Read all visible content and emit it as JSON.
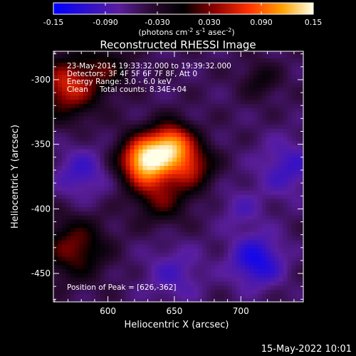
{
  "chart_data": {
    "type": "heatmap",
    "title": "Reconstructed RHESSI Image",
    "xlabel": "Heliocentric X (arcsec)",
    "ylabel": "Heliocentric Y (arcsec)",
    "xlim": [
      559,
      747
    ],
    "ylim": [
      -472,
      -278
    ],
    "x_ticks": [
      600,
      650,
      700
    ],
    "y_ticks": [
      -450,
      -400,
      -350,
      -300
    ],
    "colorbar": {
      "range": [
        -0.15,
        0.15
      ],
      "ticks": [
        "-0.15",
        "-0.090",
        "-0.030",
        "0.030",
        "0.090",
        "0.15"
      ],
      "tick_values": [
        -0.15,
        -0.09,
        -0.03,
        0.03,
        0.09,
        0.15
      ],
      "unit_label": "(photons cm",
      "unit_sup1": "-2",
      "unit_mid": " s",
      "unit_sup2": "-1",
      "unit_mid2": " asec",
      "unit_sup3": "-2",
      "unit_end": ")"
    },
    "annotations": {
      "time_range": "23-May-2014 19:33:32.000 to 19:39:32.000",
      "detectors": "Detectors: 3F 4F 5F 6F 7F 8F, Att 0",
      "energy": "Energy Range: 3.0 - 6.0 keV",
      "clean_label": "Clean",
      "total_counts": "Total counts: 8.34E+04",
      "peak": "Position of Peak = [626,-362]"
    },
    "peak": {
      "x": 626,
      "y": -362,
      "value": 0.15
    },
    "sources": [
      {
        "x": 628,
        "y": -362,
        "amp": 0.19,
        "sigma": 13
      },
      {
        "x": 648,
        "y": -348,
        "amp": 0.13,
        "sigma": 11
      },
      {
        "x": 662,
        "y": -366,
        "amp": 0.1,
        "sigma": 12
      },
      {
        "x": 640,
        "y": -390,
        "amp": 0.07,
        "sigma": 14
      },
      {
        "x": 570,
        "y": -305,
        "amp": 0.11,
        "sigma": 16
      },
      {
        "x": 575,
        "y": -430,
        "amp": 0.08,
        "sigma": 16
      },
      {
        "x": 600,
        "y": -290,
        "amp": 0.05,
        "sigma": 12
      },
      {
        "x": 715,
        "y": -300,
        "amp": 0.04,
        "sigma": 10
      },
      {
        "x": 735,
        "y": -368,
        "amp": -0.05,
        "sigma": 16
      },
      {
        "x": 712,
        "y": -440,
        "amp": -0.08,
        "sigma": 14
      },
      {
        "x": 580,
        "y": -372,
        "amp": -0.05,
        "sigma": 14
      },
      {
        "x": 650,
        "y": -450,
        "amp": -0.04,
        "sigma": 16
      },
      {
        "x": 700,
        "y": -400,
        "amp": -0.03,
        "sigma": 12
      }
    ]
  },
  "footer": {
    "date_stamp": "15-May-2022 10:01"
  }
}
